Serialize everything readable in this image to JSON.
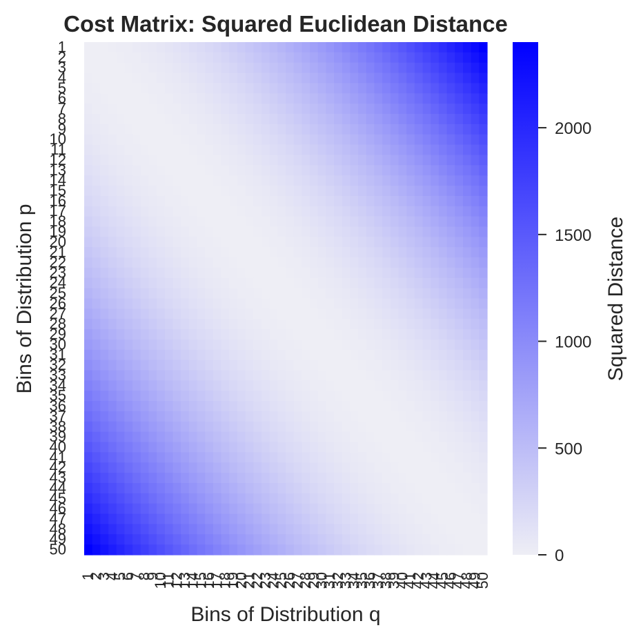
{
  "chart_data": {
    "type": "heatmap",
    "title": "Cost Matrix: Squared Euclidean Distance",
    "xlabel": "Bins of Distribution q",
    "ylabel": "Bins of Distribution p",
    "x_categories": [
      "1",
      "2",
      "3",
      "4",
      "5",
      "6",
      "7",
      "8",
      "9",
      "10",
      "11",
      "12",
      "13",
      "14",
      "15",
      "16",
      "17",
      "18",
      "19",
      "20",
      "21",
      "22",
      "23",
      "24",
      "25",
      "26",
      "27",
      "28",
      "29",
      "30",
      "31",
      "32",
      "33",
      "34",
      "35",
      "36",
      "37",
      "38",
      "39",
      "40",
      "41",
      "42",
      "43",
      "44",
      "45",
      "46",
      "47",
      "48",
      "49",
      "50"
    ],
    "y_categories": [
      "1",
      "2",
      "3",
      "4",
      "5",
      "6",
      "7",
      "8",
      "9",
      "10",
      "11",
      "12",
      "13",
      "14",
      "15",
      "16",
      "17",
      "18",
      "19",
      "20",
      "21",
      "22",
      "23",
      "24",
      "25",
      "26",
      "27",
      "28",
      "29",
      "30",
      "31",
      "32",
      "33",
      "34",
      "35",
      "36",
      "37",
      "38",
      "39",
      "40",
      "41",
      "42",
      "43",
      "44",
      "45",
      "46",
      "47",
      "48",
      "49",
      "50"
    ],
    "value_formula": "(i - j)^2",
    "value_range": [
      0,
      2401
    ],
    "colorbar": {
      "label": "Squared Distance",
      "ticks": [
        0,
        500,
        1000,
        1500,
        2000
      ],
      "tick_labels": [
        "0",
        "500",
        "1000",
        "1500",
        "2000"
      ],
      "colors": [
        "#eeeef5",
        "#0000ff"
      ]
    },
    "grid": false
  }
}
